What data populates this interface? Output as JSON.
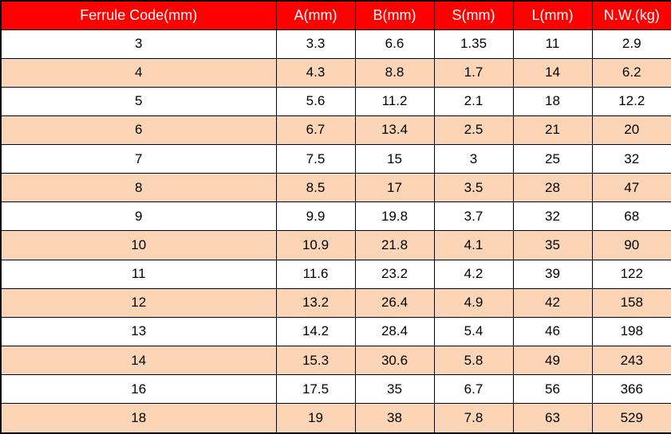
{
  "table": {
    "headers": [
      "Ferrule Code(mm)",
      "A(mm)",
      "B(mm)",
      "S(mm)",
      "L(mm)",
      "N.W.(kg)"
    ],
    "rows": [
      [
        "3",
        "3.3",
        "6.6",
        "1.35",
        "11",
        "2.9"
      ],
      [
        "4",
        "4.3",
        "8.8",
        "1.7",
        "14",
        "6.2"
      ],
      [
        "5",
        "5.6",
        "11.2",
        "2.1",
        "18",
        "12.2"
      ],
      [
        "6",
        "6.7",
        "13.4",
        "2.5",
        "21",
        "20"
      ],
      [
        "7",
        "7.5",
        "15",
        "3",
        "25",
        "32"
      ],
      [
        "8",
        "8.5",
        "17",
        "3.5",
        "28",
        "47"
      ],
      [
        "9",
        "9.9",
        "19.8",
        "3.7",
        "32",
        "68"
      ],
      [
        "10",
        "10.9",
        "21.8",
        "4.1",
        "35",
        "90"
      ],
      [
        "11",
        "11.6",
        "23.2",
        "4.2",
        "39",
        "122"
      ],
      [
        "12",
        "13.2",
        "26.4",
        "4.9",
        "42",
        "158"
      ],
      [
        "13",
        "14.2",
        "28.4",
        "5.4",
        "46",
        "198"
      ],
      [
        "14",
        "15.3",
        "30.6",
        "5.8",
        "49",
        "243"
      ],
      [
        "16",
        "17.5",
        "35",
        "6.7",
        "56",
        "366"
      ],
      [
        "18",
        "19",
        "38",
        "7.8",
        "63",
        "529"
      ]
    ],
    "colors": {
      "header_bg": "#FF0000",
      "header_text": "#FFFFFF",
      "row_even_bg": "#FFFFFF",
      "row_odd_bg": "#FBD5B5",
      "border": "#000000",
      "text": "#000000"
    }
  }
}
